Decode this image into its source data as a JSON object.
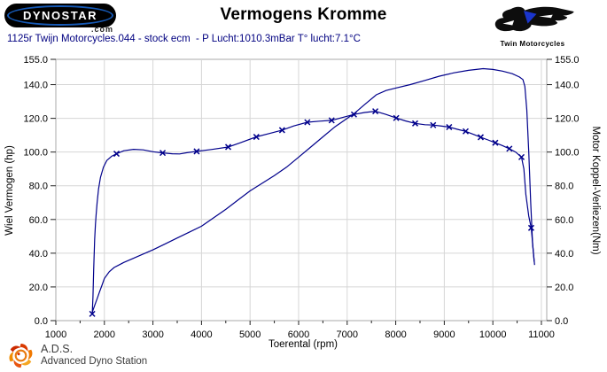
{
  "header": {
    "title": "Vermogens Kromme",
    "subtitle": "1125r Twijn Motorcycles.044 - stock ecm  - P Lucht:1010.3mBar T° lucht:7.1°C",
    "dynostar_logo_text": "DYNOSTAR",
    "dynostar_suffix": ".com",
    "twin_logo_caption": "Twin Motorcycles"
  },
  "footer": {
    "ads_abbr": "A.D.S.",
    "ads_name": "Advanced Dyno Station"
  },
  "colors": {
    "curve": "#00008b",
    "subtitle_blue": "#000080",
    "grid": "#d6d6d6",
    "plot_border": "#a8a8a8",
    "tick": "#222222",
    "logo_blue": "#1659b5",
    "ads_orange": "#e87a10"
  },
  "chart_data": {
    "type": "line",
    "title": "Vermogens Kromme",
    "xlabel": "Toerental (rpm)",
    "ylabel_left": "Wiel Vermogen (hp)",
    "ylabel_right": "Motor Koppel-Verliezen(Nm)",
    "xlim": [
      1000,
      11110
    ],
    "ylim": [
      0,
      155
    ],
    "grid": true,
    "x_ticks": [
      1000,
      2000,
      3000,
      4000,
      5000,
      6000,
      7000,
      8000,
      9000,
      10000,
      11000
    ],
    "x_minor_ticks": [
      1500,
      2500,
      3500,
      4500,
      5500,
      6500,
      7500,
      8500,
      9500,
      10500
    ],
    "y_ticks": [
      0,
      20,
      40,
      60,
      80,
      100,
      120,
      140,
      155
    ],
    "y_tick_labels": [
      "0.0",
      "20.0",
      "40.0",
      "60.0",
      "80.0",
      "100.0",
      "120.0",
      "140.0",
      "155.0"
    ],
    "series": [
      {
        "name": "Wiel Vermogen (hp)",
        "axis": "left",
        "marker": "none",
        "points": [
          [
            1750,
            5
          ],
          [
            1800,
            9
          ],
          [
            1850,
            13
          ],
          [
            1900,
            17
          ],
          [
            1950,
            21
          ],
          [
            2000,
            25
          ],
          [
            2100,
            29
          ],
          [
            2200,
            31.5
          ],
          [
            2300,
            33
          ],
          [
            2400,
            34.5
          ],
          [
            2600,
            37
          ],
          [
            2800,
            39.5
          ],
          [
            3000,
            42
          ],
          [
            3250,
            45.5
          ],
          [
            3500,
            49
          ],
          [
            3750,
            52.5
          ],
          [
            4000,
            56
          ],
          [
            4250,
            61
          ],
          [
            4500,
            66
          ],
          [
            4750,
            71.5
          ],
          [
            5000,
            77
          ],
          [
            5250,
            81.5
          ],
          [
            5500,
            86
          ],
          [
            5750,
            91
          ],
          [
            6000,
            97
          ],
          [
            6250,
            103
          ],
          [
            6500,
            109
          ],
          [
            6750,
            115
          ],
          [
            7000,
            120
          ],
          [
            7150,
            123
          ],
          [
            7350,
            128
          ],
          [
            7600,
            134
          ],
          [
            7800,
            136.5
          ],
          [
            8000,
            138
          ],
          [
            8300,
            140
          ],
          [
            8600,
            142.5
          ],
          [
            8900,
            145
          ],
          [
            9200,
            147
          ],
          [
            9500,
            148.5
          ],
          [
            9800,
            149.5
          ],
          [
            10000,
            149
          ],
          [
            10200,
            148
          ],
          [
            10400,
            146.5
          ],
          [
            10550,
            144.5
          ],
          [
            10620,
            143
          ],
          [
            10660,
            139
          ],
          [
            10700,
            125
          ],
          [
            10740,
            100
          ],
          [
            10780,
            70
          ],
          [
            10820,
            45
          ],
          [
            10860,
            33
          ]
        ]
      },
      {
        "name": "Motor Koppel-Verliezen (Nm)",
        "axis": "right",
        "marker": "x",
        "points": [
          [
            1750,
            4
          ],
          [
            1765,
            14
          ],
          [
            1780,
            30
          ],
          [
            1800,
            48
          ],
          [
            1815,
            57
          ],
          [
            1830,
            63
          ],
          [
            1850,
            70
          ],
          [
            1880,
            78
          ],
          [
            1920,
            85
          ],
          [
            1980,
            91
          ],
          [
            2050,
            95
          ],
          [
            2150,
            97.5
          ],
          [
            2250,
            99
          ],
          [
            2400,
            100.8
          ],
          [
            2600,
            101.6
          ],
          [
            2800,
            101.3
          ],
          [
            3000,
            100.2
          ],
          [
            3200,
            99.5
          ],
          [
            3400,
            99
          ],
          [
            3550,
            98.9
          ],
          [
            3700,
            99.6
          ],
          [
            3900,
            100.4
          ],
          [
            4200,
            101.5
          ],
          [
            4550,
            103
          ],
          [
            4800,
            105.5
          ],
          [
            5130,
            109
          ],
          [
            5400,
            111
          ],
          [
            5660,
            113
          ],
          [
            5900,
            115.5
          ],
          [
            6180,
            117.7
          ],
          [
            6430,
            118.3
          ],
          [
            6680,
            118.8
          ],
          [
            6900,
            120.5
          ],
          [
            7140,
            122.3
          ],
          [
            7360,
            123.5
          ],
          [
            7580,
            124.2
          ],
          [
            7800,
            122.3
          ],
          [
            8010,
            120.2
          ],
          [
            8200,
            118.5
          ],
          [
            8400,
            117
          ],
          [
            8600,
            116.2
          ],
          [
            8770,
            116
          ],
          [
            8950,
            115.4
          ],
          [
            9100,
            114.8
          ],
          [
            9270,
            113.5
          ],
          [
            9440,
            112.3
          ],
          [
            9600,
            110.5
          ],
          [
            9750,
            108.8
          ],
          [
            9900,
            107.2
          ],
          [
            10050,
            105.5
          ],
          [
            10200,
            103.8
          ],
          [
            10340,
            102
          ],
          [
            10470,
            100
          ],
          [
            10590,
            97
          ],
          [
            10640,
            90
          ],
          [
            10680,
            75
          ],
          [
            10740,
            62
          ],
          [
            10790,
            55
          ],
          [
            10830,
            42
          ],
          [
            10850,
            35
          ]
        ],
        "marker_points": [
          [
            1750,
            4
          ],
          [
            2250,
            99
          ],
          [
            3200,
            99.5
          ],
          [
            3900,
            100.4
          ],
          [
            4550,
            103
          ],
          [
            5130,
            109
          ],
          [
            5660,
            113
          ],
          [
            6180,
            117.7
          ],
          [
            6680,
            118.8
          ],
          [
            7140,
            122.3
          ],
          [
            7580,
            124.2
          ],
          [
            8010,
            120.2
          ],
          [
            8400,
            117
          ],
          [
            8770,
            116
          ],
          [
            9100,
            114.8
          ],
          [
            9440,
            112.3
          ],
          [
            9750,
            108.8
          ],
          [
            10050,
            105.5
          ],
          [
            10340,
            102
          ],
          [
            10590,
            97
          ],
          [
            10790,
            55
          ]
        ]
      }
    ]
  }
}
